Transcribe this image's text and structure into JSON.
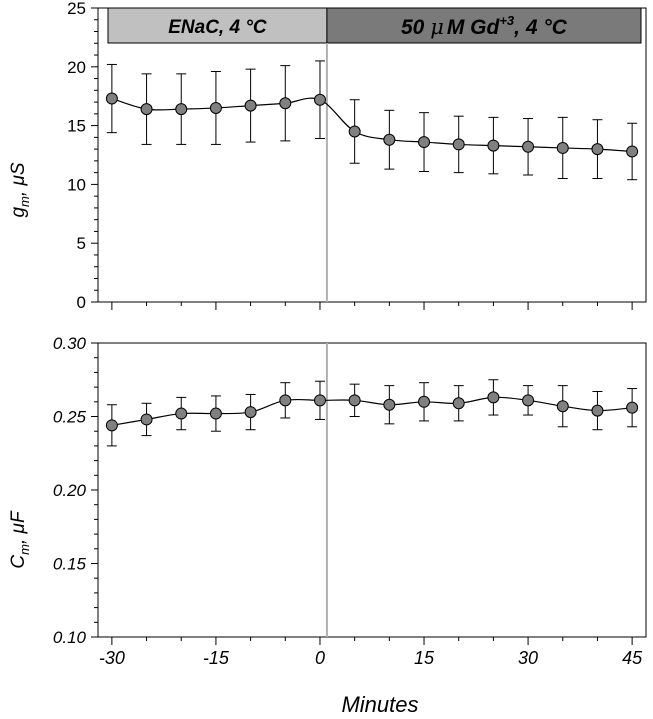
{
  "chart_data": [
    {
      "type": "line",
      "title": "",
      "xlabel": "",
      "ylabel": "g_m, μS",
      "ylabel_main": "g",
      "ylabel_sub": "m",
      "ylabel_rest": ", μS",
      "ylim": [
        0,
        25
      ],
      "yticks": [
        0,
        5,
        10,
        15,
        20,
        25
      ],
      "ytick_labels": [
        "0",
        "5",
        "10",
        "15",
        "20",
        "25"
      ],
      "xlim": [
        -32,
        47
      ],
      "conditions": [
        {
          "label": "ENaC, 4 °C",
          "x_start": -32,
          "x_end": 1,
          "fill": "#c0c0c0"
        },
        {
          "label_pre": "50 ",
          "label_mu": "μ",
          "label_post1": "M Gd",
          "label_sup": "+3",
          "label_post2": ", 4 °C",
          "x_start": 1,
          "x_end": 47,
          "fill": "#7a7a7a"
        }
      ],
      "series": [
        {
          "x": [
            -30,
            -25,
            -20,
            -15,
            -10,
            -5,
            0,
            5,
            10,
            15,
            20,
            25,
            30,
            35,
            40,
            45
          ],
          "values": [
            17.3,
            16.4,
            16.4,
            16.5,
            16.7,
            16.9,
            17.2,
            14.5,
            13.8,
            13.6,
            13.4,
            13.3,
            13.2,
            13.1,
            13.0,
            12.8
          ],
          "error": [
            2.9,
            3.0,
            3.0,
            3.1,
            3.1,
            3.2,
            3.3,
            2.7,
            2.5,
            2.5,
            2.4,
            2.4,
            2.4,
            2.6,
            2.5,
            2.4
          ]
        }
      ]
    },
    {
      "type": "line",
      "title": "",
      "xlabel": "Minutes",
      "ylabel": "C_m, μF",
      "ylabel_main": "C",
      "ylabel_sub": "m",
      "ylabel_rest": ", μF",
      "ylim": [
        0.1,
        0.3
      ],
      "yticks": [
        0.1,
        0.15,
        0.2,
        0.25,
        0.3
      ],
      "ytick_labels": [
        "0.10",
        "0.15",
        "0.20",
        "0.25",
        "0.30"
      ],
      "xlim": [
        -32,
        47
      ],
      "xticks": [
        -30,
        -15,
        0,
        15,
        30,
        45
      ],
      "xtick_labels": [
        "-30",
        "-15",
        "0",
        "15",
        "30",
        "45"
      ],
      "series": [
        {
          "x": [
            -30,
            -25,
            -20,
            -15,
            -10,
            -5,
            0,
            5,
            10,
            15,
            20,
            25,
            30,
            35,
            40,
            45
          ],
          "values": [
            0.244,
            0.248,
            0.252,
            0.252,
            0.253,
            0.261,
            0.261,
            0.261,
            0.258,
            0.26,
            0.259,
            0.263,
            0.261,
            0.257,
            0.254,
            0.256
          ],
          "error": [
            0.014,
            0.011,
            0.011,
            0.012,
            0.012,
            0.012,
            0.013,
            0.011,
            0.013,
            0.013,
            0.012,
            0.012,
            0.01,
            0.014,
            0.013,
            0.013
          ]
        }
      ]
    }
  ],
  "colors": {
    "marker_fill": "#808080",
    "line": "#000000",
    "divider": "#b0b0b0"
  }
}
